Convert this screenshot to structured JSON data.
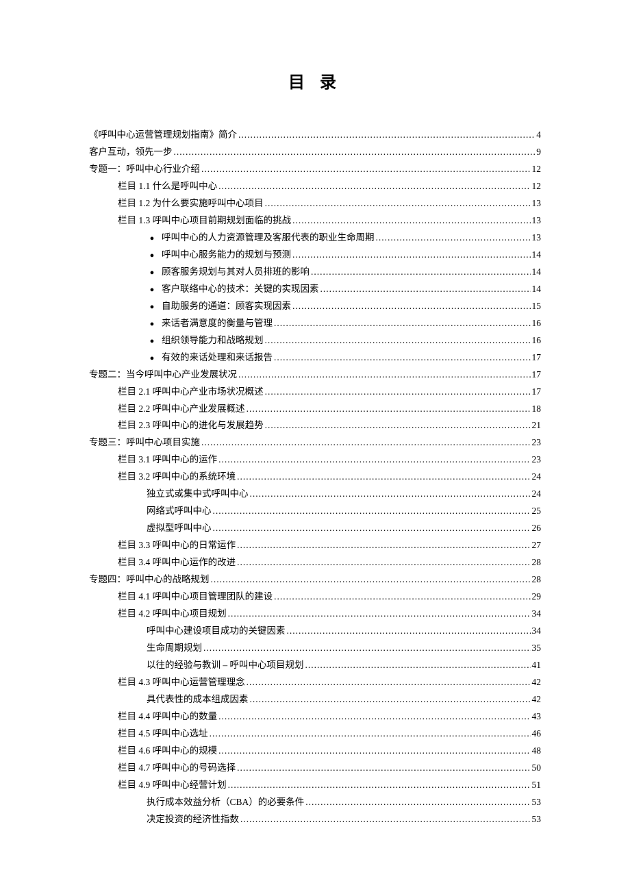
{
  "title": "目 录",
  "typography": {
    "title_fontsize": 24,
    "body_fontsize": 13.5,
    "line_height": 1.85,
    "font_family": "SimSun",
    "text_color": "#000000",
    "background_color": "#ffffff"
  },
  "entries": [
    {
      "indent": 0,
      "bullet": false,
      "text": "《呼叫中心运营管理规划指南》简介",
      "page": "4"
    },
    {
      "indent": 0,
      "bullet": false,
      "text": "客户互动，领先一步",
      "page": "9"
    },
    {
      "indent": 0,
      "bullet": false,
      "text": "专题一：呼叫中心行业介绍",
      "page": "12"
    },
    {
      "indent": 1,
      "bullet": false,
      "text": "栏目 1.1  什么是呼叫中心",
      "page": "12"
    },
    {
      "indent": 1,
      "bullet": false,
      "text": "栏目 1.2  为什么要实施呼叫中心项目",
      "page": "13"
    },
    {
      "indent": 1,
      "bullet": false,
      "text": "栏目 1.3  呼叫中心项目前期规划面临的挑战",
      "page": "13"
    },
    {
      "indent": 2,
      "bullet": true,
      "text": "呼叫中心的人力资源管理及客服代表的职业生命周期",
      "page": "13"
    },
    {
      "indent": 2,
      "bullet": true,
      "text": "呼叫中心服务能力的规划与预测",
      "page": "14"
    },
    {
      "indent": 2,
      "bullet": true,
      "text": "顾客服务规划与其对人员排班的影响",
      "page": "14"
    },
    {
      "indent": 2,
      "bullet": true,
      "text": "客户联络中心的技术：关键的实现因素",
      "page": "14"
    },
    {
      "indent": 2,
      "bullet": true,
      "text": "自助服务的通道：顾客实现因素",
      "page": "15"
    },
    {
      "indent": 2,
      "bullet": true,
      "text": "来话者满意度的衡量与管理",
      "page": "16"
    },
    {
      "indent": 2,
      "bullet": true,
      "text": "组织领导能力和战略规划",
      "page": "16"
    },
    {
      "indent": 2,
      "bullet": true,
      "text": "有效的来话处理和来话报告",
      "page": "17"
    },
    {
      "indent": 0,
      "bullet": false,
      "text": "专题二：当今呼叫中心产业发展状况",
      "page": "17"
    },
    {
      "indent": 1,
      "bullet": false,
      "text": "栏目 2.1  呼叫中心产业市场状况概述",
      "page": "17"
    },
    {
      "indent": 1,
      "bullet": false,
      "text": "栏目 2.2  呼叫中心产业发展概述",
      "page": "18"
    },
    {
      "indent": 1,
      "bullet": false,
      "text": "栏目 2.3  呼叫中心的进化与发展趋势",
      "page": "21"
    },
    {
      "indent": 0,
      "bullet": false,
      "text": "专题三：呼叫中心项目实施",
      "page": "23"
    },
    {
      "indent": 1,
      "bullet": false,
      "text": "栏目 3.1  呼叫中心的运作",
      "page": "23"
    },
    {
      "indent": 1,
      "bullet": false,
      "text": "栏目 3.2  呼叫中心的系统环境",
      "page": "24"
    },
    {
      "indent": 2,
      "bullet": false,
      "text": "独立式或集中式呼叫中心",
      "page": "24"
    },
    {
      "indent": 2,
      "bullet": false,
      "text": "网络式呼叫中心",
      "page": "25"
    },
    {
      "indent": 2,
      "bullet": false,
      "text": "虚拟型呼叫中心",
      "page": "26"
    },
    {
      "indent": 1,
      "bullet": false,
      "text": "栏目 3.3  呼叫中心的日常运作",
      "page": "27"
    },
    {
      "indent": 1,
      "bullet": false,
      "text": "栏目 3.4  呼叫中心运作的改进",
      "page": "28"
    },
    {
      "indent": 0,
      "bullet": false,
      "text": "专题四：呼叫中心的战略规划",
      "page": "28"
    },
    {
      "indent": 1,
      "bullet": false,
      "text": "栏目 4.1  呼叫中心项目管理团队的建设",
      "page": "29"
    },
    {
      "indent": 1,
      "bullet": false,
      "text": "栏目 4.2  呼叫中心项目规划",
      "page": "34"
    },
    {
      "indent": 2,
      "bullet": false,
      "text": "呼叫中心建设项目成功的关键因素",
      "page": "34"
    },
    {
      "indent": 2,
      "bullet": false,
      "text": "生命周期规划",
      "page": "35"
    },
    {
      "indent": 2,
      "bullet": false,
      "text": "以往的经验与教训 – 呼叫中心项目规划",
      "page": "41"
    },
    {
      "indent": 1,
      "bullet": false,
      "text": "栏目 4.3  呼叫中心运营管理理念",
      "page": "42"
    },
    {
      "indent": 2,
      "bullet": false,
      "text": "具代表性的成本组成因素",
      "page": "42"
    },
    {
      "indent": 1,
      "bullet": false,
      "text": "栏目 4.4  呼叫中心的数量",
      "page": "43"
    },
    {
      "indent": 1,
      "bullet": false,
      "text": "栏目 4.5  呼叫中心选址",
      "page": "46"
    },
    {
      "indent": 1,
      "bullet": false,
      "text": "栏目 4.6  呼叫中心的规模",
      "page": "48"
    },
    {
      "indent": 1,
      "bullet": false,
      "text": "栏目 4.7  呼叫中心的号码选择",
      "page": "50"
    },
    {
      "indent": 1,
      "bullet": false,
      "text": "栏目 4.9  呼叫中心经营计划",
      "page": "51"
    },
    {
      "indent": 2,
      "bullet": false,
      "text": "执行成本效益分析（CBA）的必要条件 ",
      "page": "53"
    },
    {
      "indent": 2,
      "bullet": false,
      "text": "决定投资的经济性指数",
      "page": "53"
    }
  ]
}
